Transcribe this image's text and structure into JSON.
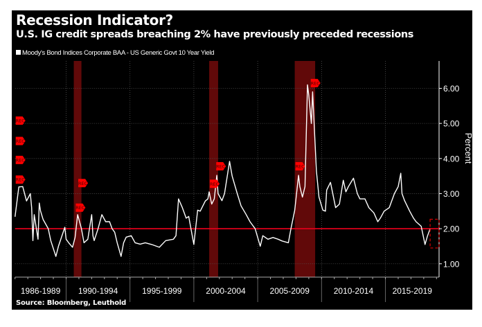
{
  "chart_data": {
    "type": "line",
    "title": "Recession Indicator?",
    "subtitle": "U.S. IG credit spreads breaching 2% have previously preceded recessions",
    "legend": "Moody's Bond Indices Corporate BAA - US Generic Govt 10 Year Yield",
    "ylabel": "Percent",
    "source": "Source: Bloomberg, Leuthold",
    "xlim": [
      1986.0,
      2019.2
    ],
    "ylim": [
      0.62,
      6.78
    ],
    "y_ticks": [
      "1.00",
      "2.00",
      "3.00",
      "4.00",
      "5.00",
      "6.00"
    ],
    "x_periods": [
      {
        "label": "1986-1989",
        "start": 1986,
        "end": 1990
      },
      {
        "label": "1990-1994",
        "start": 1990,
        "end": 1995
      },
      {
        "label": "1995-1999",
        "start": 1995,
        "end": 2000
      },
      {
        "label": "2000-2004",
        "start": 2000,
        "end": 2005
      },
      {
        "label": "2005-2009",
        "start": 2005,
        "end": 2010
      },
      {
        "label": "2010-2014",
        "start": 2010,
        "end": 2015
      },
      {
        "label": "2015-2019",
        "start": 2015,
        "end": 2019.2
      }
    ],
    "grid": true,
    "threshold": 2.0,
    "colors": {
      "background": "#000000",
      "line": "#ffffff",
      "threshold": "#e0001a",
      "recession": "#6b0a0a",
      "marker": "#ff0000"
    },
    "recessions": [
      [
        1990.6,
        1991.2
      ],
      [
        2001.2,
        2001.9
      ],
      [
        2007.9,
        2009.5
      ]
    ],
    "rec_marker_label": "REC",
    "rec_markers": [
      {
        "x": 1986.0,
        "y": 5.08
      },
      {
        "x": 1986.0,
        "y": 4.5
      },
      {
        "x": 1986.0,
        "y": 3.96
      },
      {
        "x": 1986.0,
        "y": 3.4
      },
      {
        "x": 1990.9,
        "y": 3.3
      },
      {
        "x": 1990.7,
        "y": 2.6
      },
      {
        "x": 2001.7,
        "y": 3.78
      },
      {
        "x": 2001.2,
        "y": 3.28
      },
      {
        "x": 2007.9,
        "y": 3.78
      },
      {
        "x": 2009.1,
        "y": 6.15
      }
    ],
    "highlight_box": {
      "x": [
        2018.5,
        2019.2
      ],
      "y": [
        1.45,
        2.27
      ]
    },
    "series": [
      {
        "x": [
          1986.0,
          1986.3,
          1986.6,
          1986.9,
          1987.2,
          1987.3,
          1987.4,
          1987.5,
          1987.8,
          1987.9,
          1988.0,
          1988.2,
          1988.6,
          1988.8,
          1989.2,
          1989.4,
          1989.9,
          1990.0,
          1990.2,
          1990.5,
          1990.7,
          1990.9,
          1991.2,
          1991.4,
          1991.7,
          1992.0,
          1992.1,
          1992.2,
          1992.5,
          1992.8,
          1993.1,
          1993.4,
          1993.6,
          1993.8,
          1994.0,
          1994.3,
          1994.5,
          1994.7,
          1995.1,
          1995.4,
          1995.8,
          1996.2,
          1996.7,
          1997.3,
          1997.8,
          1998.4,
          1998.6,
          1998.8,
          1999.1,
          1999.4,
          1999.6,
          2000.0,
          2000.3,
          2000.5,
          2000.9,
          2001.1,
          2001.2,
          2001.4,
          2001.6,
          2001.8,
          2001.9,
          2002.2,
          2002.4,
          2002.8,
          2003.0,
          2003.4,
          2003.7,
          2004.1,
          2004.4,
          2004.8,
          2005.2,
          2005.4,
          2005.8,
          2006.2,
          2006.6,
          2006.9,
          2007.4,
          2007.6,
          2007.9,
          2008.2,
          2008.3,
          2008.5,
          2008.7,
          2008.9,
          2009.0,
          2009.2,
          2009.3,
          2009.6,
          2009.8,
          2010.1,
          2010.3,
          2010.4,
          2010.7,
          2011.1,
          2011.4,
          2011.7,
          2011.9,
          2012.1,
          2012.5,
          2012.8,
          2013.0,
          2013.4,
          2013.7,
          2014.1,
          2014.4,
          2014.6,
          2014.9,
          2015.3,
          2015.7,
          2016.0,
          2016.2,
          2016.3,
          2016.5,
          2016.9,
          2017.2,
          2017.4,
          2017.8,
          2018.1,
          2018.3,
          2018.5
        ],
        "y": [
          2.34,
          3.19,
          3.2,
          2.79,
          3.0,
          2.6,
          1.66,
          2.4,
          1.7,
          2.73,
          2.5,
          2.26,
          2.0,
          1.66,
          1.21,
          1.5,
          2.04,
          1.7,
          1.6,
          1.47,
          1.75,
          2.4,
          2.0,
          1.6,
          1.7,
          2.4,
          1.8,
          1.66,
          2.0,
          2.4,
          2.2,
          2.2,
          2.0,
          1.9,
          1.6,
          1.21,
          1.6,
          1.76,
          1.8,
          1.6,
          1.56,
          1.6,
          1.55,
          1.47,
          1.66,
          1.7,
          1.8,
          2.85,
          2.6,
          2.3,
          2.35,
          1.55,
          2.53,
          2.5,
          2.79,
          2.85,
          3.05,
          2.7,
          2.85,
          3.52,
          3.0,
          2.8,
          3.0,
          3.92,
          3.5,
          3.0,
          2.65,
          2.4,
          2.2,
          2.0,
          1.5,
          1.8,
          1.7,
          1.75,
          1.7,
          1.65,
          1.6,
          2.0,
          2.53,
          3.52,
          3.2,
          2.9,
          3.2,
          6.1,
          5.8,
          5.0,
          5.9,
          3.64,
          2.9,
          2.53,
          2.5,
          3.1,
          3.32,
          2.6,
          2.7,
          3.38,
          3.05,
          3.2,
          3.44,
          3.0,
          2.85,
          2.85,
          2.6,
          2.45,
          2.2,
          2.3,
          2.5,
          2.6,
          3.0,
          3.2,
          3.58,
          3.0,
          2.8,
          2.5,
          2.3,
          2.2,
          2.07,
          1.55,
          1.8,
          2.0
        ]
      }
    ]
  }
}
